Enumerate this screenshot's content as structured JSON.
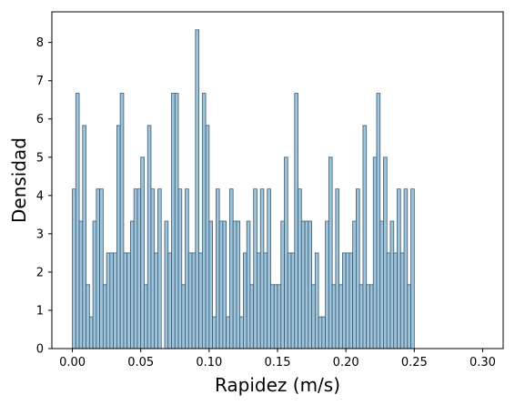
{
  "chart_data": {
    "type": "bar",
    "xlabel": "Rapidez (m/s)",
    "ylabel": "Densidad",
    "xlim": [
      -0.015,
      0.315
    ],
    "ylim": [
      0,
      8.8
    ],
    "bin_start": 0.0,
    "bin_width": 0.0025,
    "values": [
      4.17,
      6.67,
      3.33,
      5.83,
      1.67,
      0.83,
      3.33,
      4.17,
      4.17,
      1.67,
      2.5,
      2.5,
      2.5,
      5.83,
      6.67,
      2.5,
      2.5,
      3.33,
      4.17,
      4.17,
      5.0,
      1.67,
      5.83,
      4.17,
      2.5,
      4.17,
      0,
      3.33,
      2.5,
      6.67,
      6.67,
      4.17,
      1.67,
      4.17,
      2.5,
      2.5,
      8.33,
      2.5,
      6.67,
      5.83,
      3.33,
      0.83,
      4.17,
      3.33,
      3.33,
      0.83,
      4.17,
      3.33,
      3.33,
      0.83,
      2.5,
      3.33,
      1.67,
      4.17,
      2.5,
      4.17,
      2.5,
      4.17,
      1.67,
      1.67,
      1.67,
      3.33,
      5.0,
      2.5,
      2.5,
      6.67,
      4.17,
      3.33,
      3.33,
      3.33,
      1.67,
      2.5,
      0.83,
      0.83,
      3.33,
      5.0,
      1.67,
      4.17,
      1.67,
      2.5,
      2.5,
      2.5,
      3.33,
      4.17,
      1.67,
      5.83,
      1.67,
      1.67,
      5.0,
      6.67,
      3.33,
      5.0,
      2.5,
      3.33,
      2.5,
      4.17,
      2.5,
      4.17,
      1.67,
      4.17
    ],
    "xticks": [
      0.0,
      0.05,
      0.1,
      0.15,
      0.2,
      0.25,
      0.3
    ],
    "xtick_labels": [
      "0.00",
      "0.05",
      "0.10",
      "0.15",
      "0.20",
      "0.25",
      "0.30"
    ],
    "yticks": [
      0,
      1,
      2,
      3,
      4,
      5,
      6,
      7,
      8
    ],
    "ytick_labels": [
      "0",
      "1",
      "2",
      "3",
      "4",
      "5",
      "6",
      "7",
      "8"
    ],
    "bar_color": "#9ec4dc",
    "bar_edge_color": "#3c5a70",
    "grid": false,
    "legend": "none"
  }
}
